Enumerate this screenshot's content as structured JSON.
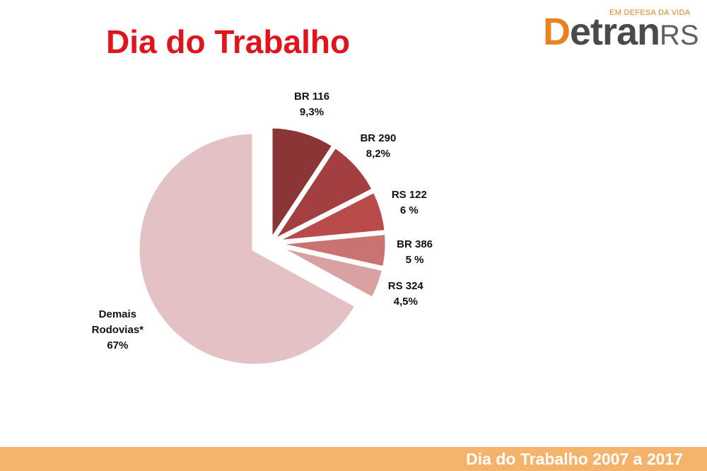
{
  "logo": {
    "tagline": "EM DEFESA DA VIDA",
    "initial": "D",
    "word": "etran",
    "suffix": "RS"
  },
  "chart_data": {
    "type": "pie",
    "title": "Dia do Trabalho",
    "categories": [
      "BR 116",
      "BR 290",
      "RS 122",
      "BR 386",
      "RS 324",
      "Demais Rodovias*"
    ],
    "values": [
      9.3,
      8.2,
      6,
      5,
      4.5,
      67
    ],
    "value_labels": [
      "9,3%",
      "8,2%",
      "6 %",
      "5 %",
      "4,5%",
      "67%"
    ],
    "colors": [
      "#8b3537",
      "#a23f40",
      "#b94c4b",
      "#c97473",
      "#d9a1a1",
      "#e2c2c4"
    ]
  },
  "footer": {
    "text": "Dia do Trabalho 2007 a 2017"
  }
}
